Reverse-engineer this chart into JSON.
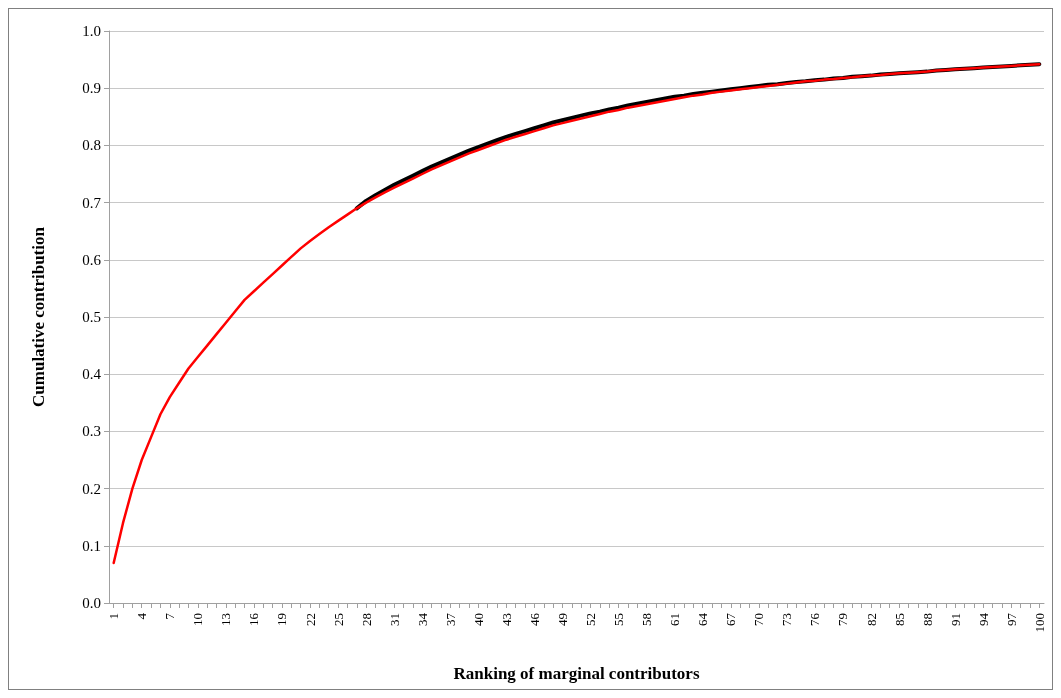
{
  "chart_data": {
    "type": "line",
    "xlabel": "Ranking of marginal contributors",
    "ylabel": "Cumulative contribution",
    "categories": [
      "1",
      null,
      null,
      "4",
      null,
      null,
      "7",
      null,
      null,
      "10",
      null,
      null,
      "13",
      null,
      null,
      "16",
      null,
      null,
      "19",
      null,
      null,
      "22",
      null,
      null,
      "25",
      null,
      null,
      "28",
      null,
      null,
      "31",
      null,
      null,
      "34",
      null,
      null,
      "37",
      null,
      null,
      "40",
      null,
      null,
      "43",
      null,
      null,
      "46",
      null,
      null,
      "49",
      null,
      null,
      "52",
      null,
      null,
      "55",
      null,
      null,
      "58",
      null,
      null,
      "61",
      null,
      null,
      "64",
      null,
      null,
      "67",
      null,
      null,
      "70",
      null,
      null,
      "73",
      null,
      null,
      "76",
      null,
      null,
      "79",
      null,
      null,
      "82",
      null,
      null,
      "85",
      null,
      null,
      "88",
      null,
      null,
      "91",
      null,
      null,
      "94",
      null,
      null,
      "97",
      null,
      null,
      "100"
    ],
    "ylim": [
      0,
      1
    ],
    "yticks": [
      {
        "value": 0,
        "label": "0.0"
      },
      0.1,
      0.2,
      0.3,
      0.4,
      0.5,
      0.6,
      0.7,
      0.8,
      0.9,
      {
        "value": 1,
        "label": "1.0"
      }
    ],
    "grid": "y",
    "marker": "none",
    "line_style": "solid",
    "series": [
      {
        "color": "#000000",
        "values": [
          null,
          null,
          null,
          null,
          null,
          null,
          null,
          null,
          null,
          null,
          null,
          null,
          null,
          null,
          null,
          null,
          null,
          null,
          null,
          null,
          null,
          null,
          null,
          null,
          null,
          null,
          0.69,
          0.703,
          0.713,
          0.722,
          0.731,
          0.739,
          0.747,
          0.755,
          0.763,
          0.77,
          0.777,
          0.784,
          0.791,
          0.797,
          0.803,
          0.809,
          0.815,
          0.82,
          0.825,
          0.83,
          0.835,
          0.84,
          0.844,
          0.848,
          0.852,
          0.856,
          0.859,
          0.863,
          0.866,
          0.87,
          0.873,
          0.876,
          0.879,
          0.882,
          0.885,
          0.887,
          0.89,
          0.892,
          0.894,
          0.896,
          0.898,
          0.9,
          0.902,
          0.904,
          0.906,
          0.907,
          0.909,
          0.911,
          0.912,
          0.914,
          0.915,
          0.917,
          0.918,
          0.92,
          0.921,
          0.922,
          0.924,
          0.925,
          0.926,
          0.927,
          0.928,
          0.929,
          0.931,
          0.932,
          0.933,
          0.934,
          0.935,
          0.936,
          0.937,
          0.938,
          0.939,
          0.94,
          0.941,
          0.942
        ]
      },
      {
        "color": "#ff0000",
        "values": [
          0.07,
          0.14,
          0.2,
          0.25,
          0.29,
          0.33,
          0.36,
          0.385,
          0.41,
          0.43,
          0.45,
          0.47,
          0.49,
          0.51,
          0.53,
          0.545,
          0.56,
          0.575,
          0.59,
          0.605,
          0.62,
          0.633,
          0.645,
          0.657,
          0.668,
          0.679,
          0.69,
          0.7,
          0.709,
          0.718,
          0.726,
          0.734,
          0.742,
          0.75,
          0.758,
          0.765,
          0.772,
          0.779,
          0.786,
          0.792,
          0.798,
          0.804,
          0.81,
          0.815,
          0.82,
          0.825,
          0.83,
          0.835,
          0.839,
          0.843,
          0.847,
          0.851,
          0.855,
          0.859,
          0.862,
          0.866,
          0.869,
          0.872,
          0.875,
          0.878,
          0.881,
          0.884,
          0.887,
          0.889,
          0.892,
          0.894,
          0.896,
          0.898,
          0.9,
          0.902,
          0.904,
          0.906,
          0.908,
          0.91,
          0.912,
          0.913,
          0.915,
          0.916,
          0.918,
          0.919,
          0.921,
          0.922,
          0.923,
          0.925,
          0.926,
          0.927,
          0.928,
          0.929,
          0.931,
          0.932,
          0.933,
          0.934,
          0.935,
          0.936,
          0.937,
          0.938,
          0.939,
          0.94,
          0.941,
          0.942
        ]
      }
    ]
  }
}
